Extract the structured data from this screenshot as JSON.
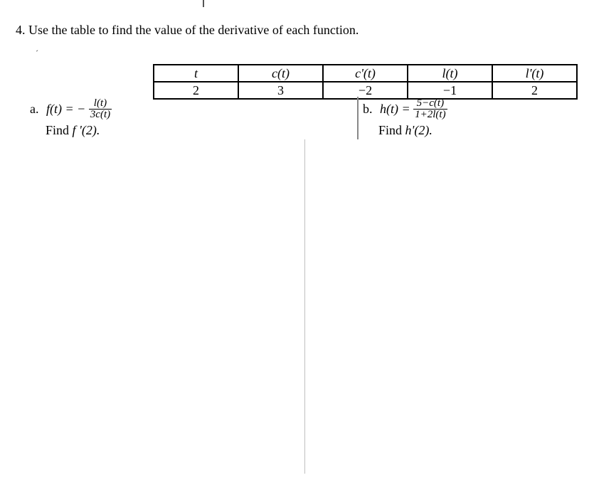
{
  "question": {
    "number": "4.",
    "text": "Use the table to find the value of the derivative of each function."
  },
  "tickmark": "ˊ",
  "table": {
    "headers": [
      "t",
      "c(t)",
      "c'(t)",
      "l(t)",
      "l'(t)"
    ],
    "row": [
      "2",
      "3",
      "−2",
      "−1",
      "2"
    ]
  },
  "parts": {
    "a": {
      "label": "a.",
      "lhs": "f(t) = −",
      "num": "l(t)",
      "den": "3c(t)",
      "find_prefix": "Find ",
      "find_expr": "f '(2).",
      "find_suffix": ""
    },
    "b": {
      "label": "b.",
      "lhs": "h(t) =",
      "num": "5−c(t)",
      "den": "1+2l(t)",
      "find_prefix": "Find ",
      "find_expr": "h'(2).",
      "find_suffix": ""
    }
  }
}
